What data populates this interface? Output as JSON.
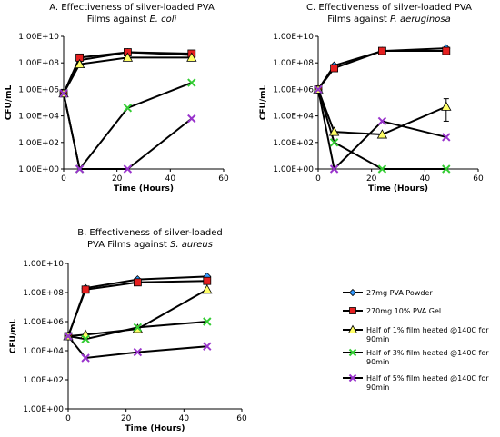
{
  "chart_data": [
    {
      "type": "line",
      "panel": "A",
      "title": "A. Effectiveness of silver-loaded PVA",
      "title_line2": "Films against",
      "title_italic": "E. coli",
      "xlabel": "Time (Hours)",
      "ylabel": "CFU/mL",
      "x_ticks": [
        0,
        20,
        40,
        60
      ],
      "y_ticks": [
        "1.00E+00",
        "1.00E+02",
        "1.00E+04",
        "1.00E+06",
        "1.00E+08",
        "1.00E+10"
      ],
      "xlim": [
        0,
        60
      ],
      "ylim_log10": [
        0,
        10
      ],
      "x": [
        0,
        6,
        24,
        48
      ],
      "series": [
        {
          "name": "27mg PVA Powder",
          "log10_values": [
            5.7,
            8.2,
            8.8,
            8.6
          ]
        },
        {
          "name": "270mg 10% PVA Gel",
          "log10_values": [
            5.7,
            8.4,
            8.8,
            8.7
          ]
        },
        {
          "name": "Half of 1% film heated @140C for 90min",
          "log10_values": [
            5.7,
            7.9,
            8.4,
            8.4
          ]
        },
        {
          "name": "Half of 3% film heated @140C for 90min",
          "log10_values": [
            5.7,
            0,
            4.6,
            6.5
          ]
        },
        {
          "name": "Half of 5% film heated @140C for 90min",
          "log10_values": [
            5.7,
            0,
            0,
            3.8
          ]
        }
      ]
    },
    {
      "type": "line",
      "panel": "C",
      "title": "C. Effectiveness of silver-loaded PVA",
      "title_line2": "Films against",
      "title_italic": "P. aeruginosa",
      "xlabel": "Time (Hours)",
      "ylabel": "CFU/mL",
      "x_ticks": [
        0,
        20,
        40,
        60
      ],
      "y_ticks": [
        "1.00E+00",
        "1.00E+02",
        "1.00E+04",
        "1.00E+06",
        "1.00E+08",
        "1.00E+10"
      ],
      "xlim": [
        0,
        60
      ],
      "ylim_log10": [
        0,
        10
      ],
      "x": [
        0,
        6,
        24,
        48
      ],
      "series": [
        {
          "name": "27mg PVA Powder",
          "log10_values": [
            6.0,
            7.8,
            8.9,
            9.1
          ]
        },
        {
          "name": "270mg 10% PVA Gel",
          "log10_values": [
            6.0,
            7.6,
            8.9,
            8.9
          ]
        },
        {
          "name": "Half of 1% film heated @140C for 90min",
          "log10_values": [
            6.0,
            2.8,
            2.6,
            4.7
          ],
          "error_upper": [
            0,
            0,
            0,
            5.3
          ],
          "error_lower": [
            0,
            0,
            0,
            3.6
          ]
        },
        {
          "name": "Half of 3% film heated @140C for 90min",
          "log10_values": [
            6.0,
            2.0,
            0,
            0
          ]
        },
        {
          "name": "Half of 5% film heated @140C for 90min",
          "log10_values": [
            6.0,
            0,
            3.6,
            2.4
          ]
        }
      ]
    },
    {
      "type": "line",
      "panel": "B",
      "title": "B. Effectiveness of silver-loaded",
      "title_line2": "PVA Films against",
      "title_italic": "S. aureus",
      "xlabel": "Time (Hours)",
      "ylabel": "CFU/mL",
      "x_ticks": [
        0,
        20,
        40,
        60
      ],
      "y_ticks": [
        "1.00E+00",
        "1.00E+02",
        "1.00E+04",
        "1.00E+06",
        "1.00E+08",
        "1.00E+10"
      ],
      "xlim": [
        0,
        60
      ],
      "ylim_log10": [
        0,
        10
      ],
      "x": [
        0,
        6,
        24,
        48
      ],
      "series": [
        {
          "name": "27mg PVA Powder",
          "log10_values": [
            5.0,
            8.3,
            8.9,
            9.1
          ]
        },
        {
          "name": "270mg 10% PVA Gel",
          "log10_values": [
            5.0,
            8.2,
            8.7,
            8.8
          ]
        },
        {
          "name": "Half of 1% film heated @140C for 90min",
          "log10_values": [
            5.0,
            5.1,
            5.5,
            8.2
          ]
        },
        {
          "name": "Half of 3% film heated @140C for 90min",
          "log10_values": [
            5.0,
            4.8,
            5.6,
            6.0
          ]
        },
        {
          "name": "Half of 5% film heated @140C for 90min",
          "log10_values": [
            5.0,
            3.5,
            3.9,
            4.3
          ]
        }
      ]
    }
  ],
  "legend": [
    {
      "label": "27mg PVA Powder",
      "color": "#3399ff",
      "marker": "diamond"
    },
    {
      "label": "270mg 10% PVA Gel",
      "color": "#e62020",
      "marker": "square"
    },
    {
      "label": "Half of 1% film heated @140C for 90min",
      "color": "#ffff66",
      "marker": "triangle"
    },
    {
      "label": "Half of 3% film heated @140C for 90min",
      "color": "#33cc33",
      "marker": "x"
    },
    {
      "label": "Half of 5% film heated @140C for 90min",
      "color": "#9933cc",
      "marker": "x"
    }
  ],
  "colors": {
    "line": "#000000",
    "axis": "#000000"
  }
}
